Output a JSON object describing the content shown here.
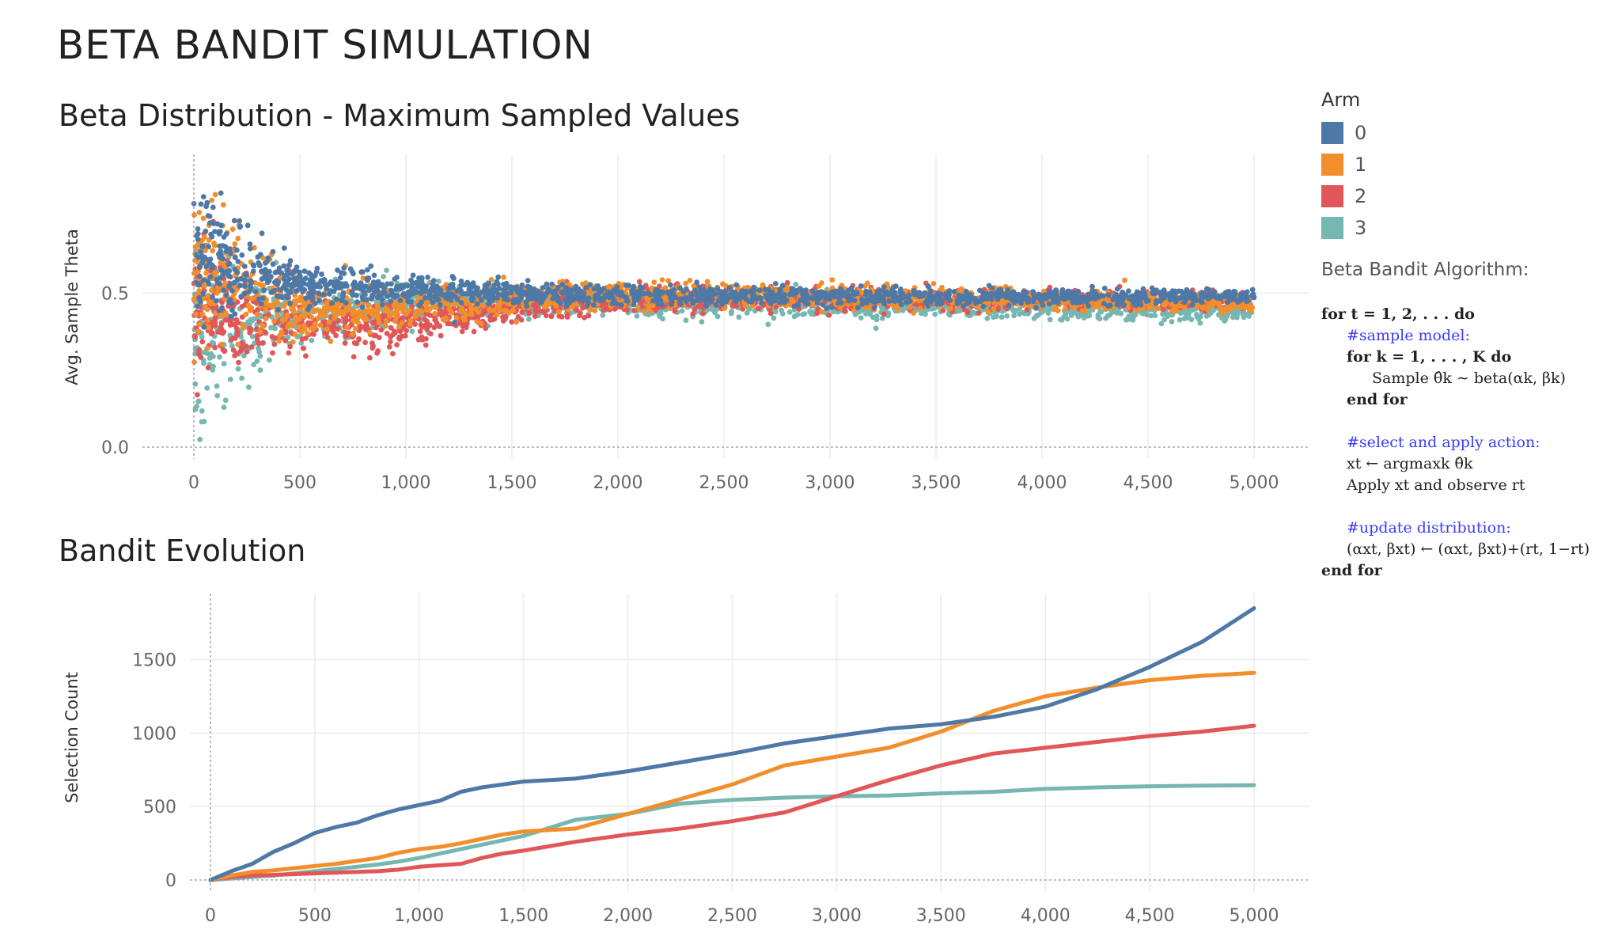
{
  "page": {
    "title": "BETA BANDIT SIMULATION"
  },
  "legend": {
    "title": "Arm",
    "items": [
      {
        "label": "0",
        "color": "#4e79a7"
      },
      {
        "label": "1",
        "color": "#f28e2b"
      },
      {
        "label": "2",
        "color": "#e15759"
      },
      {
        "label": "3",
        "color": "#76b7b2"
      }
    ]
  },
  "algorithm": {
    "title": "Beta Bandit Algorithm:",
    "lines": {
      "l1": "for t = 1, 2, . . . do",
      "l2": "#sample model:",
      "l3": "for k = 1, . . . , K do",
      "l4": "Sample θ̂k ∼ beta(αk, βk)",
      "l5": "end for",
      "l6": "#select and apply action:",
      "l7": "xt ← argmaxk θ̂k",
      "l8": "Apply xt and observe rt",
      "l9": "#update distribution:",
      "l10": "(αxt, βxt) ← (αxt, βxt)+(rt, 1−rt)",
      "l11": "end for"
    }
  },
  "chart_data": [
    {
      "type": "scatter",
      "title": "Beta Distribution - Maximum Sampled Values",
      "xlabel": "",
      "ylabel": "Avg. Sample Theta",
      "xlim": [
        0,
        5000
      ],
      "ylim": [
        0,
        0.95
      ],
      "xticks": [
        "0",
        "500",
        "1,000",
        "1,500",
        "2,000",
        "2,500",
        "3,000",
        "3,500",
        "4,000",
        "4,500",
        "5,000"
      ],
      "xtick_values": [
        0,
        500,
        1000,
        1500,
        2000,
        2500,
        3000,
        3500,
        4000,
        4500,
        5000
      ],
      "yticks": [
        "0.0",
        "0.5"
      ],
      "ytick_values": [
        0,
        0.5
      ],
      "grid": true,
      "series": [
        {
          "name": "0",
          "color": "#4e79a7",
          "center": [
            [
              0,
              0.62
            ],
            [
              500,
              0.53
            ],
            [
              1000,
              0.51
            ],
            [
              1500,
              0.5
            ],
            [
              2000,
              0.495
            ],
            [
              3000,
              0.49
            ],
            [
              4000,
              0.485
            ],
            [
              5000,
              0.49
            ]
          ],
          "spread": [
            [
              0,
              0.2
            ],
            [
              500,
              0.06
            ],
            [
              1500,
              0.03
            ],
            [
              5000,
              0.02
            ]
          ]
        },
        {
          "name": "1",
          "color": "#f28e2b",
          "center": [
            [
              0,
              0.55
            ],
            [
              500,
              0.44
            ],
            [
              1000,
              0.46
            ],
            [
              1500,
              0.48
            ],
            [
              2000,
              0.49
            ],
            [
              3000,
              0.49
            ],
            [
              4000,
              0.48
            ],
            [
              5000,
              0.47
            ]
          ],
          "spread": [
            [
              0,
              0.22
            ],
            [
              500,
              0.08
            ],
            [
              1500,
              0.04
            ],
            [
              5000,
              0.025
            ]
          ]
        },
        {
          "name": "2",
          "color": "#e15759",
          "center": [
            [
              0,
              0.45
            ],
            [
              500,
              0.4
            ],
            [
              1000,
              0.39
            ],
            [
              1500,
              0.45
            ],
            [
              2000,
              0.48
            ],
            [
              3000,
              0.48
            ],
            [
              4000,
              0.48
            ],
            [
              5000,
              0.47
            ]
          ],
          "spread": [
            [
              0,
              0.2
            ],
            [
              500,
              0.08
            ],
            [
              1500,
              0.04
            ],
            [
              5000,
              0.025
            ]
          ]
        },
        {
          "name": "3",
          "color": "#76b7b2",
          "center": [
            [
              0,
              0.35
            ],
            [
              500,
              0.42
            ],
            [
              1000,
              0.47
            ],
            [
              1500,
              0.47
            ],
            [
              2000,
              0.47
            ],
            [
              3000,
              0.46
            ],
            [
              4000,
              0.45
            ],
            [
              5000,
              0.44
            ]
          ],
          "spread": [
            [
              0,
              0.25
            ],
            [
              500,
              0.08
            ],
            [
              1500,
              0.04
            ],
            [
              5000,
              0.025
            ]
          ]
        }
      ]
    },
    {
      "type": "line",
      "title": "Bandit Evolution",
      "xlabel": "",
      "ylabel": "Selection Count",
      "xlim": [
        0,
        5000
      ],
      "ylim": [
        0,
        1950
      ],
      "xticks": [
        "0",
        "500",
        "1,000",
        "1,500",
        "2,000",
        "2,500",
        "3,000",
        "3,500",
        "4,000",
        "4,500",
        "5,000"
      ],
      "xtick_values": [
        0,
        500,
        1000,
        1500,
        2000,
        2500,
        3000,
        3500,
        4000,
        4500,
        5000
      ],
      "yticks": [
        "0",
        "500",
        "1000",
        "1500"
      ],
      "ytick_values": [
        0,
        500,
        1000,
        1500
      ],
      "grid": true,
      "series": [
        {
          "name": "0",
          "color": "#4e79a7",
          "x": [
            0,
            100,
            200,
            300,
            400,
            500,
            600,
            700,
            800,
            900,
            1000,
            1100,
            1200,
            1300,
            1400,
            1500,
            1750,
            2000,
            2250,
            2500,
            2750,
            3000,
            3250,
            3500,
            3750,
            4000,
            4250,
            4500,
            4750,
            5000
          ],
          "y": [
            0,
            60,
            110,
            190,
            250,
            320,
            360,
            390,
            440,
            480,
            510,
            540,
            600,
            630,
            650,
            670,
            690,
            740,
            800,
            860,
            930,
            980,
            1030,
            1060,
            1110,
            1180,
            1300,
            1450,
            1620,
            1850
          ]
        },
        {
          "name": "1",
          "color": "#f28e2b",
          "x": [
            0,
            100,
            200,
            300,
            400,
            500,
            600,
            700,
            800,
            900,
            1000,
            1100,
            1200,
            1300,
            1400,
            1500,
            1750,
            2000,
            2250,
            2500,
            2750,
            3000,
            3250,
            3500,
            3750,
            4000,
            4250,
            4500,
            4750,
            5000
          ],
          "y": [
            0,
            30,
            55,
            65,
            80,
            95,
            110,
            130,
            150,
            185,
            210,
            225,
            250,
            280,
            310,
            330,
            350,
            450,
            550,
            650,
            780,
            840,
            900,
            1010,
            1150,
            1250,
            1310,
            1360,
            1390,
            1410
          ]
        },
        {
          "name": "2",
          "color": "#e15759",
          "x": [
            0,
            100,
            200,
            300,
            400,
            500,
            600,
            700,
            800,
            900,
            1000,
            1100,
            1200,
            1300,
            1400,
            1500,
            1750,
            2000,
            2250,
            2500,
            2750,
            3000,
            3250,
            3500,
            3750,
            4000,
            4250,
            4500,
            4750,
            5000
          ],
          "y": [
            0,
            20,
            30,
            35,
            40,
            45,
            50,
            55,
            60,
            70,
            90,
            100,
            110,
            150,
            180,
            200,
            260,
            310,
            350,
            400,
            460,
            570,
            680,
            780,
            860,
            900,
            940,
            980,
            1010,
            1050
          ]
        },
        {
          "name": "3",
          "color": "#76b7b2",
          "x": [
            0,
            100,
            200,
            300,
            400,
            500,
            600,
            700,
            800,
            900,
            1000,
            1100,
            1200,
            1300,
            1400,
            1500,
            1750,
            2000,
            2250,
            2500,
            2750,
            3000,
            3250,
            3500,
            3750,
            4000,
            4250,
            4500,
            4750,
            5000
          ],
          "y": [
            0,
            10,
            20,
            30,
            45,
            60,
            75,
            90,
            105,
            125,
            150,
            180,
            210,
            240,
            270,
            300,
            410,
            450,
            520,
            545,
            560,
            570,
            575,
            590,
            600,
            620,
            630,
            638,
            642,
            645
          ]
        }
      ]
    }
  ]
}
